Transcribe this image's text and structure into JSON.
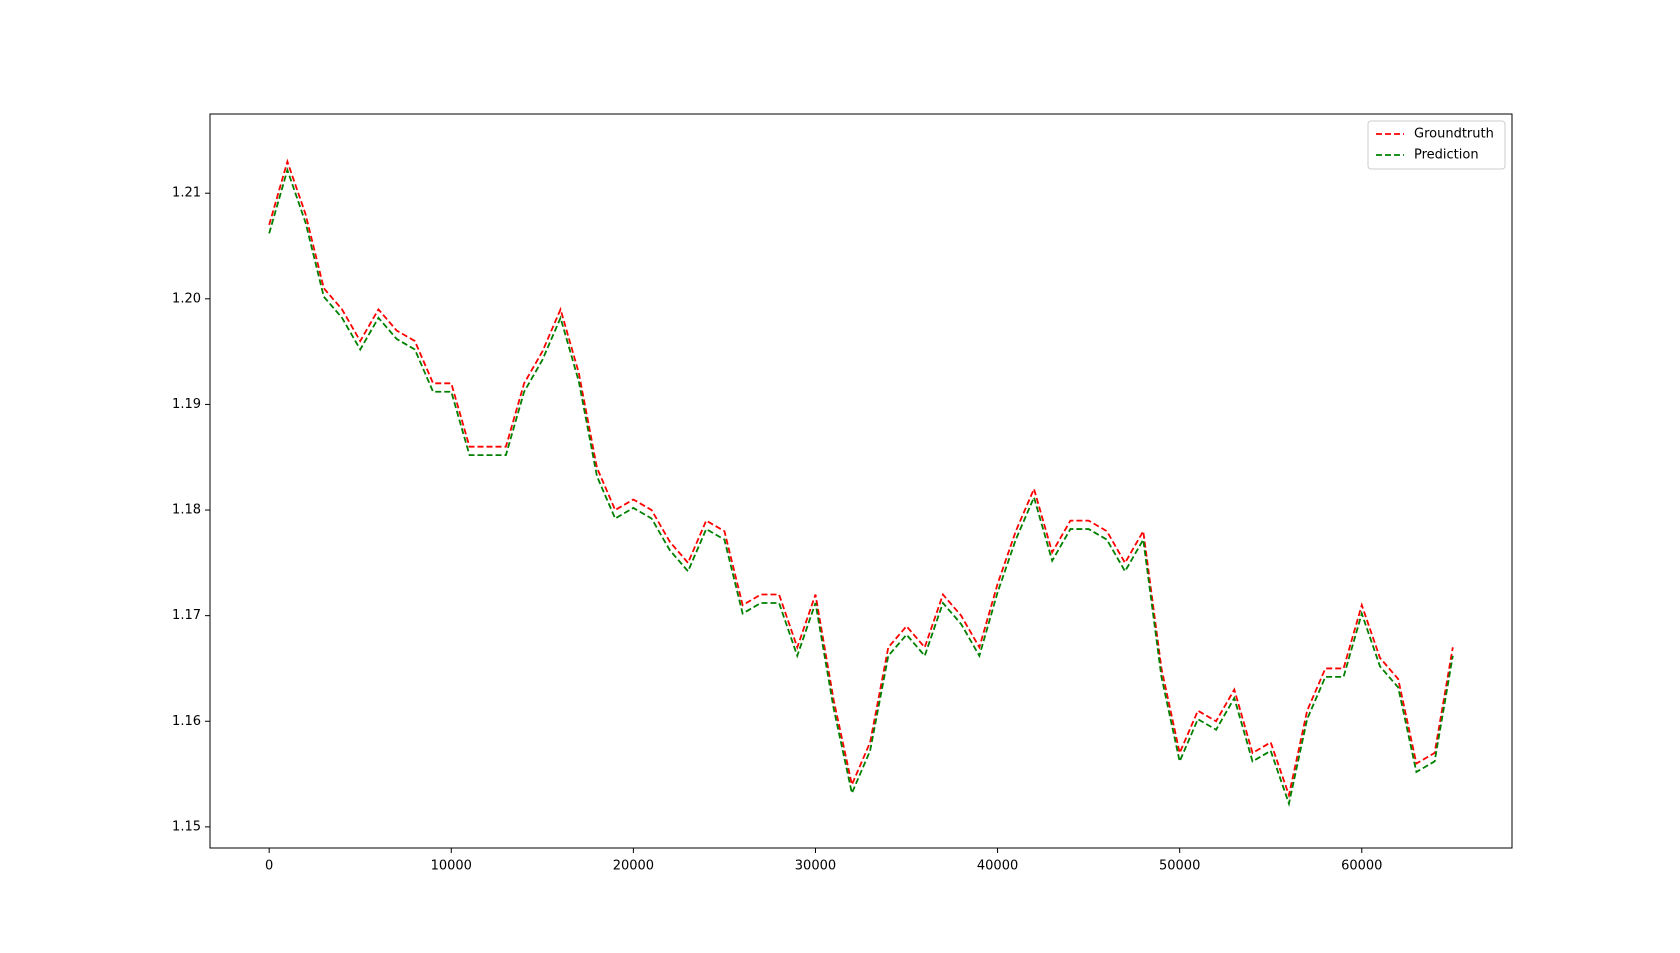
{
  "chart_data": {
    "type": "line",
    "x": [
      0,
      1000,
      2000,
      3000,
      4000,
      5000,
      6000,
      7000,
      8000,
      9000,
      10000,
      11000,
      12000,
      13000,
      14000,
      15000,
      16000,
      17000,
      18000,
      19000,
      20000,
      21000,
      22000,
      23000,
      24000,
      25000,
      26000,
      27000,
      28000,
      29000,
      30000,
      31000,
      32000,
      33000,
      34000,
      35000,
      36000,
      37000,
      38000,
      39000,
      40000,
      41000,
      42000,
      43000,
      44000,
      45000,
      46000,
      47000,
      48000,
      49000,
      50000,
      51000,
      52000,
      53000,
      54000,
      55000,
      56000,
      57000,
      58000,
      59000,
      60000,
      61000,
      62000,
      63000,
      64000,
      65000
    ],
    "series": [
      {
        "name": "Groundtruth",
        "color": "#ff0000",
        "values": [
          1.207,
          1.213,
          1.208,
          1.201,
          1.199,
          1.196,
          1.199,
          1.197,
          1.196,
          1.192,
          1.192,
          1.186,
          1.186,
          1.186,
          1.192,
          1.195,
          1.199,
          1.193,
          1.184,
          1.18,
          1.181,
          1.18,
          1.177,
          1.175,
          1.179,
          1.178,
          1.171,
          1.172,
          1.172,
          1.167,
          1.172,
          1.162,
          1.154,
          1.158,
          1.167,
          1.169,
          1.167,
          1.172,
          1.17,
          1.167,
          1.173,
          1.178,
          1.182,
          1.176,
          1.179,
          1.179,
          1.178,
          1.175,
          1.178,
          1.165,
          1.157,
          1.161,
          1.16,
          1.163,
          1.157,
          1.158,
          1.153,
          1.161,
          1.165,
          1.165,
          1.171,
          1.166,
          1.164,
          1.156,
          1.157,
          1.167
        ]
      },
      {
        "name": "Prediction",
        "color": "#008000",
        "values": [
          1.2062,
          1.2122,
          1.2072,
          1.2002,
          1.1982,
          1.1952,
          1.1982,
          1.1962,
          1.1952,
          1.1912,
          1.1912,
          1.1852,
          1.1852,
          1.1852,
          1.1912,
          1.1942,
          1.1982,
          1.1922,
          1.1832,
          1.1792,
          1.1802,
          1.1792,
          1.1762,
          1.1742,
          1.1782,
          1.1772,
          1.1702,
          1.1712,
          1.1712,
          1.1662,
          1.1712,
          1.1612,
          1.1532,
          1.1572,
          1.1662,
          1.1682,
          1.1662,
          1.1712,
          1.1692,
          1.1662,
          1.1722,
          1.1772,
          1.1812,
          1.1752,
          1.1782,
          1.1782,
          1.1772,
          1.1742,
          1.1772,
          1.1642,
          1.1562,
          1.1602,
          1.1592,
          1.1622,
          1.1562,
          1.1572,
          1.1522,
          1.1602,
          1.1642,
          1.1642,
          1.1702,
          1.1652,
          1.1632,
          1.1552,
          1.1562,
          1.1662
        ]
      }
    ],
    "xlim": [
      -3250,
      68250
    ],
    "xticks": [
      0,
      10000,
      20000,
      30000,
      40000,
      50000,
      60000
    ],
    "ylim": [
      1.148,
      1.2175
    ],
    "yticks": [
      1.15,
      1.16,
      1.17,
      1.18,
      1.19,
      {
        "value": 1.2,
        "label": "1.20"
      },
      1.21
    ],
    "legend": "upper right",
    "line_style": "dashed"
  }
}
